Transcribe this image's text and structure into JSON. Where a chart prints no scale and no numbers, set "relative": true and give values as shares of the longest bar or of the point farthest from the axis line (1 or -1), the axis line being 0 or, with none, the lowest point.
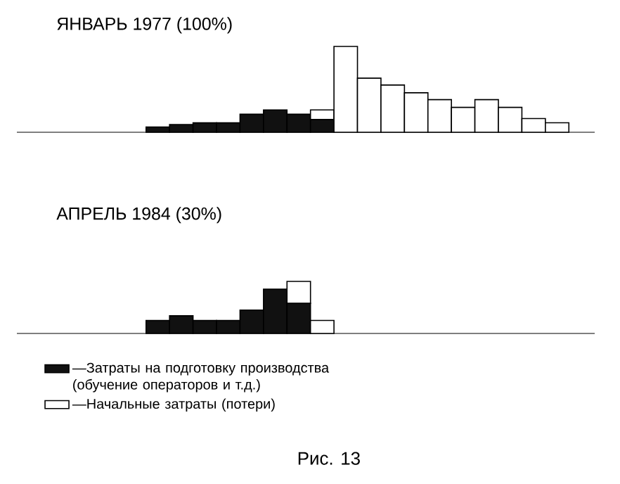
{
  "chart_data": [
    {
      "type": "bar",
      "stacked": true,
      "relative": true,
      "title": "ЯНВАРЬ 1977 (100%)",
      "categories": [
        null,
        null,
        null,
        null,
        null,
        null,
        null,
        null,
        null,
        null,
        null,
        null,
        null,
        null,
        null,
        null,
        null,
        null
      ],
      "series": [
        {
          "color": "#111111",
          "values": [
            0.06,
            0.09,
            0.11,
            0.11,
            0.21,
            0.26,
            0.21,
            0.15,
            null,
            null,
            null,
            null,
            null,
            null,
            null,
            null,
            null,
            null
          ]
        },
        {
          "color": "#ffffff",
          "values": [
            null,
            null,
            null,
            null,
            null,
            null,
            null,
            0.11,
            1,
            0.63,
            0.55,
            0.46,
            0.38,
            0.29,
            0.38,
            0.29,
            0.16,
            0.11
          ]
        }
      ]
    },
    {
      "type": "bar",
      "stacked": true,
      "relative": true,
      "title": "АПРЕЛЬ 1984 (30%)",
      "categories": [
        null,
        null,
        null,
        null,
        null,
        null,
        null,
        null,
        null,
        null,
        null,
        null,
        null,
        null,
        null,
        null,
        null,
        null
      ],
      "series": [
        {
          "name": "—Затраты на подготовку производства (обучение операторов и т.д.)",
          "color": "#111111",
          "values": [
            0.25,
            0.34,
            0.25,
            0.25,
            0.45,
            0.85,
            0.58,
            null,
            null,
            null,
            null,
            null,
            null,
            null,
            null,
            null,
            null,
            null
          ]
        },
        {
          "name": "—Начальные затраты (потери)",
          "color": "#ffffff",
          "values": [
            null,
            null,
            null,
            null,
            null,
            null,
            0.42,
            0.25,
            null,
            null,
            null,
            null,
            null,
            null,
            null,
            null,
            null,
            null
          ]
        }
      ],
      "legend": "bottom left",
      "annotations": [
        "Рис. 13"
      ]
    }
  ]
}
